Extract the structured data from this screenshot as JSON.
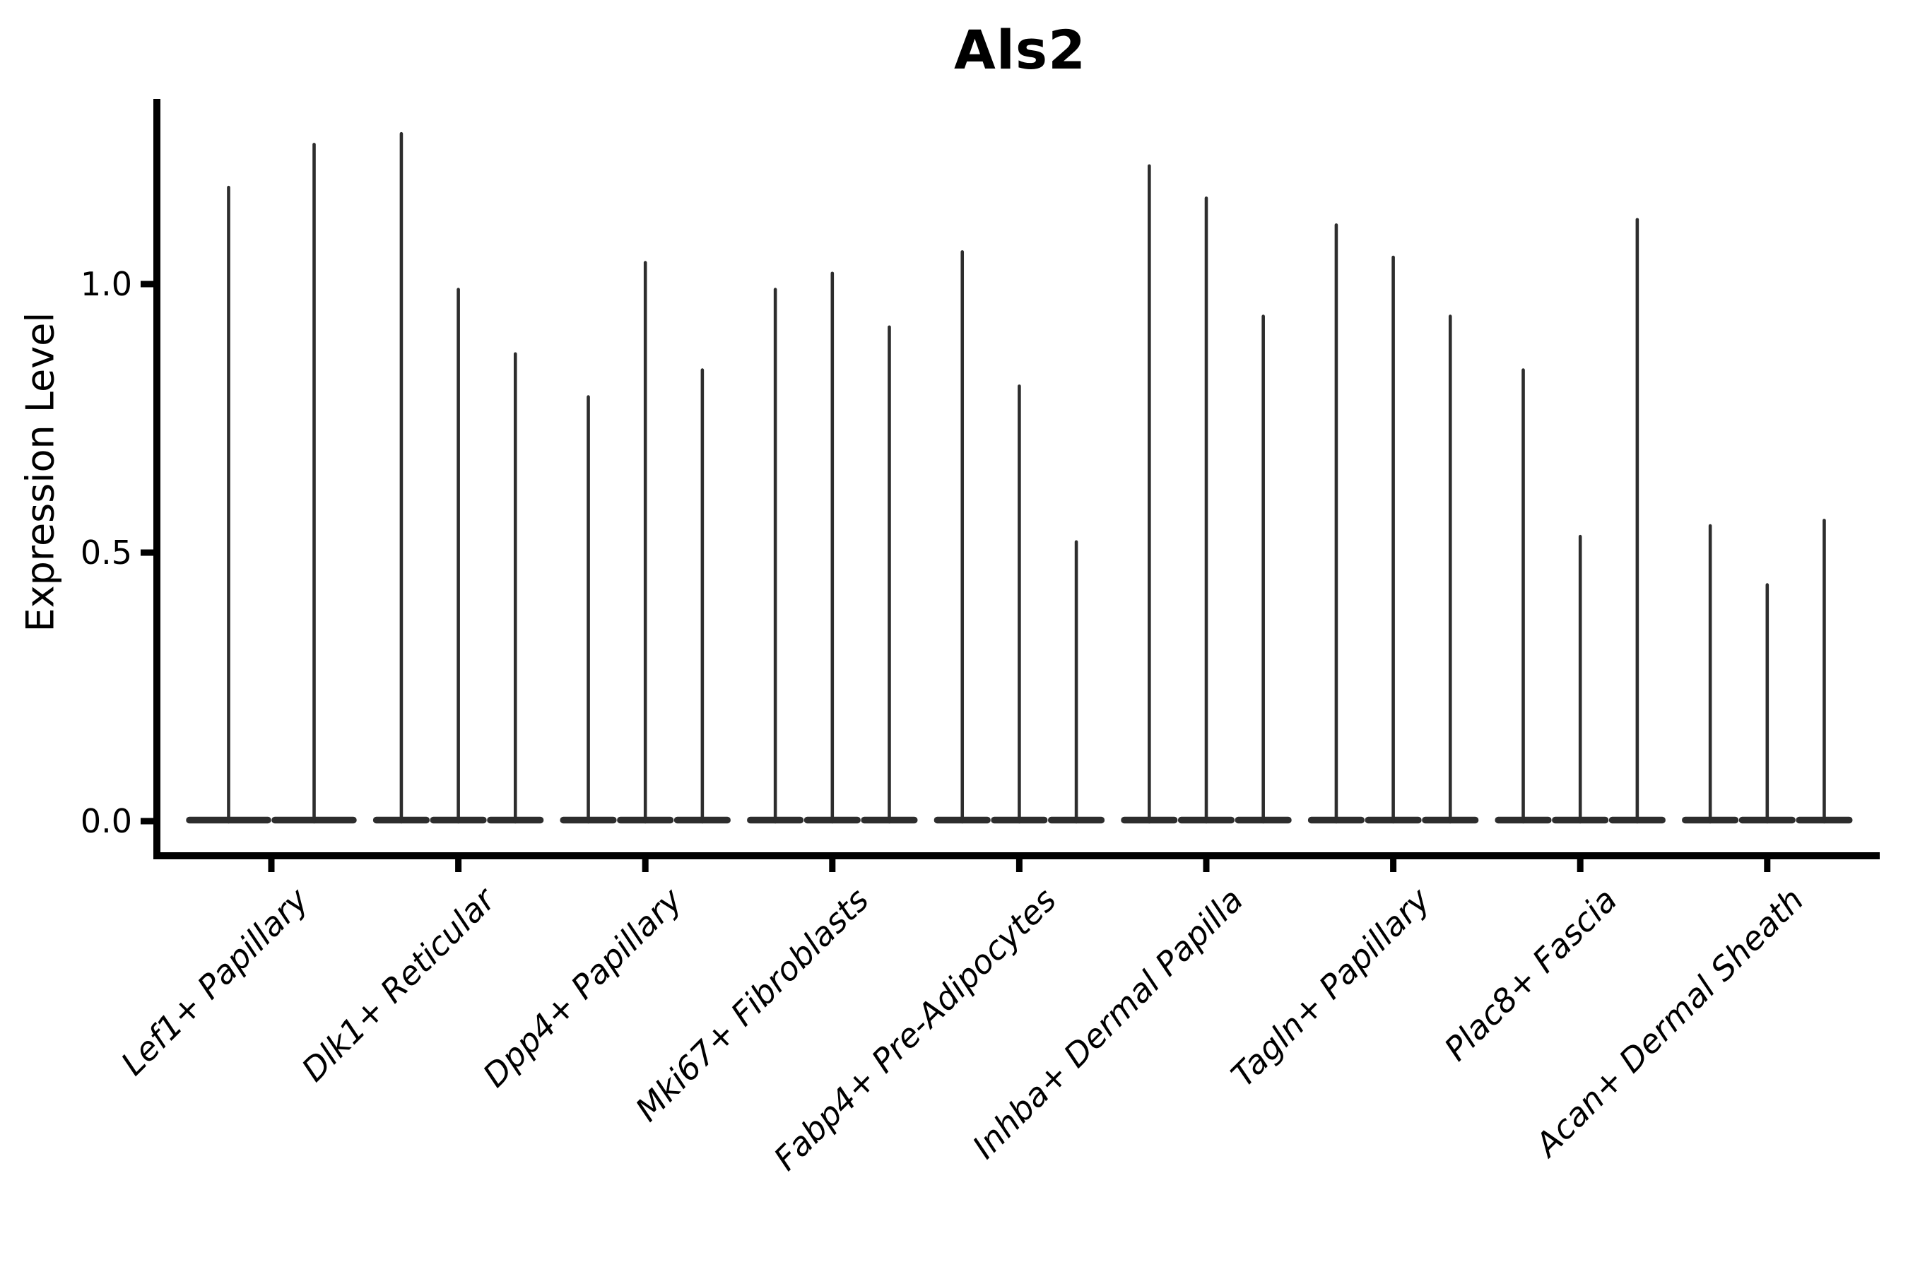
{
  "chart_data": {
    "type": "violin",
    "title": "Als2",
    "ylabel": "Expression Level",
    "xlabel": "",
    "grid": false,
    "legend": null,
    "y_tick_labels": [
      "0.0",
      "0.5",
      "1.0"
    ],
    "y_tick_values": [
      0.0,
      0.5,
      1.0
    ],
    "ylim": [
      -0.05,
      1.34
    ],
    "violin_minimum": 0.0,
    "categories": [
      "Lef1+ Papillary",
      "Dlk1+ Reticular",
      "Dpp4+ Papillary",
      "Mki67+ Fibroblasts",
      "Fabp4+ Pre-Adipocytes",
      "Inhba+ Dermal Papilla",
      "Tagln+ Papillary",
      "Plac8+ Fascia",
      "Acan+ Dermal Sheath"
    ],
    "groups": [
      {
        "label": "Lef1+ Papillary",
        "violin_maxima": [
          1.18,
          1.26
        ]
      },
      {
        "label": "Dlk1+ Reticular",
        "violin_maxima": [
          1.28,
          0.99,
          0.87
        ]
      },
      {
        "label": "Dpp4+ Papillary",
        "violin_maxima": [
          0.79,
          1.04,
          0.84
        ]
      },
      {
        "label": "Mki67+ Fibroblasts",
        "violin_maxima": [
          0.99,
          1.02,
          0.92
        ]
      },
      {
        "label": "Fabp4+ Pre-Adipocytes",
        "violin_maxima": [
          1.06,
          0.81,
          0.52
        ]
      },
      {
        "label": "Inhba+ Dermal Papilla",
        "violin_maxima": [
          1.22,
          1.16,
          0.94
        ]
      },
      {
        "label": "Tagln+ Papillary",
        "violin_maxima": [
          1.11,
          1.05,
          0.94
        ]
      },
      {
        "label": "Plac8+ Fascia",
        "violin_maxima": [
          0.84,
          0.53,
          1.12
        ]
      },
      {
        "label": "Acan+ Dermal Sheath",
        "violin_maxima": [
          0.55,
          0.44,
          0.56
        ]
      }
    ],
    "colors": {
      "violin": "#2d2d2d",
      "axis": "#000000",
      "text": "#000000"
    }
  }
}
